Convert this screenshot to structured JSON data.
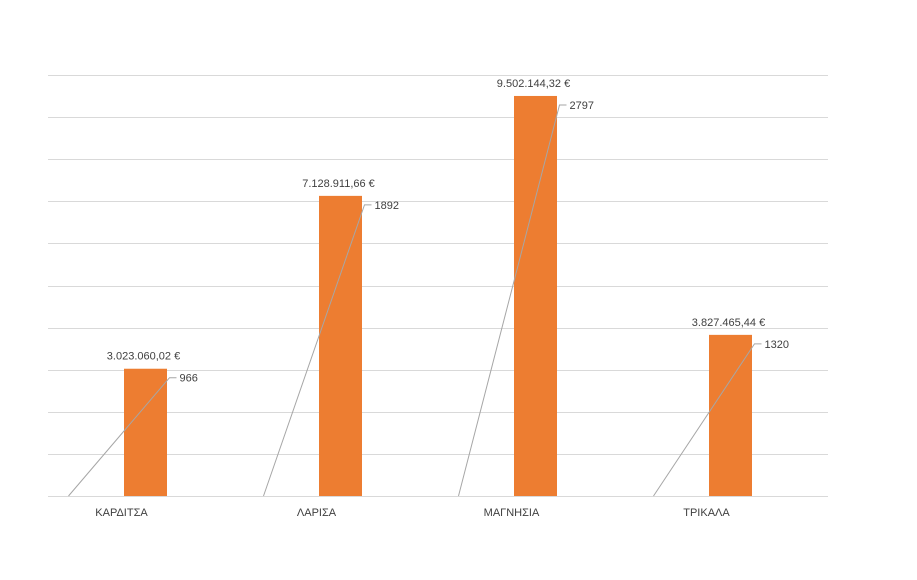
{
  "chart_data": {
    "type": "bar",
    "title": "",
    "xlabel": "",
    "ylabel": "",
    "categories": [
      "ΚΑΡΔΙΤΣΑ",
      "ΛΑΡΙΣΑ",
      "ΜΑΓΝΗΣΙΑ",
      "ΤΡΙΚΑΛΑ"
    ],
    "series": [
      {
        "values": [
          3023060.02,
          7128911.66,
          9502144.32,
          3827465.44
        ],
        "labels": [
          "3.023.060,02 €",
          "7.128.911,66 €",
          "9.502.144,32 €",
          "3.827.465,44 €"
        ],
        "color": "#ed7d31"
      },
      {
        "values": [
          966,
          1892,
          2797,
          1320
        ],
        "labels": [
          "966",
          "1892",
          "2797",
          "1320"
        ],
        "color": "#a6a6a6",
        "type": "line"
      }
    ],
    "ylim": [
      0,
      10000000
    ],
    "gridlines": 10,
    "grid": true,
    "legend": "none"
  }
}
